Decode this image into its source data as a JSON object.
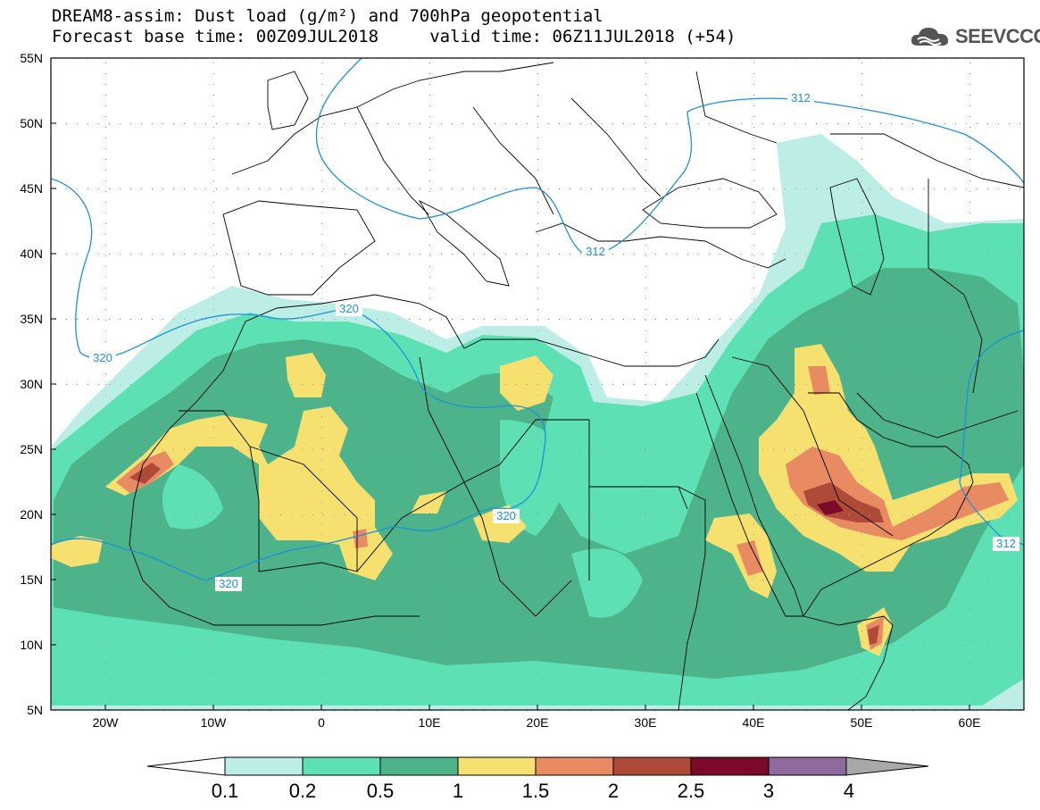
{
  "title": {
    "line1": "DREAM8-assim: Dust load (g/m²) and 700hPa geopotential",
    "line2": "Forecast base time: 00Z09JUL2018     valid time: 06Z11JUL2018 (+54)"
  },
  "logo": {
    "text": "SEEVCCC",
    "icon": "cloud-icon"
  },
  "map": {
    "lat_labels": [
      "55N",
      "50N",
      "45N",
      "40N",
      "35N",
      "30N",
      "25N",
      "20N",
      "15N",
      "10N",
      "5N"
    ],
    "lon_labels": [
      "20W",
      "10W",
      "0",
      "10E",
      "20E",
      "30E",
      "40E",
      "50E",
      "60E"
    ],
    "contour_labels": [
      "312",
      "320",
      "320",
      "320",
      "320",
      "312",
      "312"
    ],
    "contour_color": "#1e90d8"
  },
  "legend": {
    "levels": [
      "0.1",
      "0.2",
      "0.5",
      "1",
      "1.5",
      "2",
      "2.5",
      "3",
      "4"
    ],
    "colors": [
      "#ffffff",
      "#bdeee6",
      "#5de0b4",
      "#4db38b",
      "#f5e070",
      "#e88a62",
      "#b04a38",
      "#7a0a28",
      "#8e6a9e",
      "#a8a8a8"
    ]
  }
}
